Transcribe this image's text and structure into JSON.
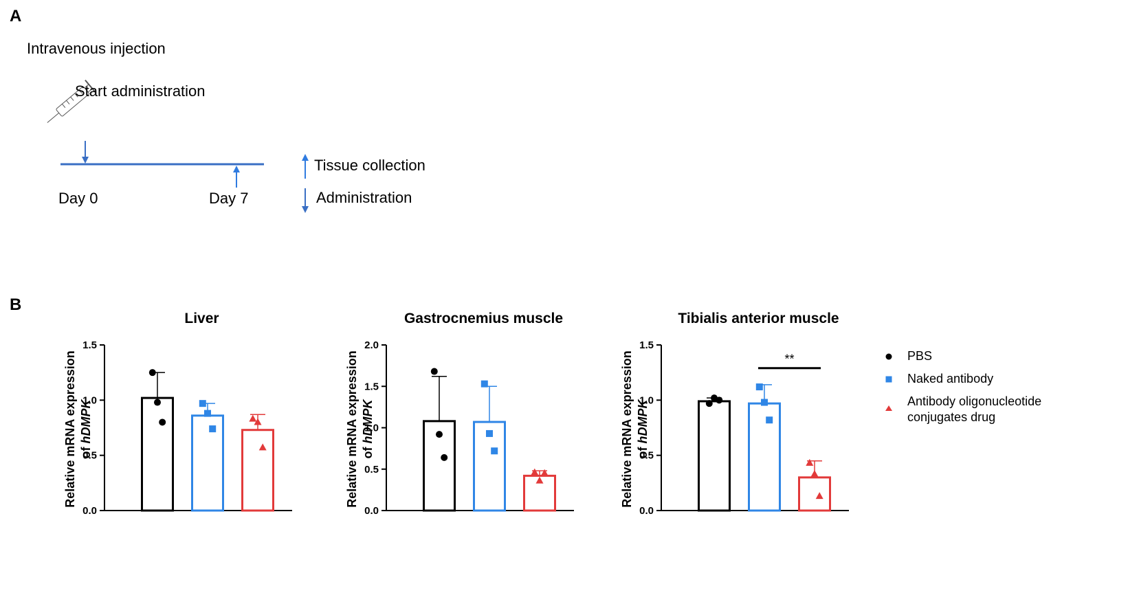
{
  "panel_a": {
    "letter": "A",
    "route": "Intravenous injection",
    "start_label": "Start administration",
    "day0": "Day 0",
    "day7": "Day 7",
    "legend": {
      "tissue": "Tissue collection",
      "admin": "Administration"
    },
    "colors": {
      "timeline": "#3a6fc4",
      "collection_arrow": "#2f7be0"
    }
  },
  "panel_b": {
    "letter": "B"
  },
  "legend": {
    "items": [
      {
        "label": "PBS",
        "color": "#000000",
        "marker": "circle"
      },
      {
        "label": "Naked antibody",
        "color": "#2f86e6",
        "marker": "square"
      },
      {
        "label_line1": "Antibody oligonucleotide",
        "label_line2": "conjugates drug",
        "color": "#e23a3a",
        "marker": "triangle"
      }
    ]
  },
  "chart_data": [
    {
      "type": "bar",
      "title": "Liver",
      "ylabel_line1": "Relative mRNA expression",
      "ylabel_line2_prefix": "of ",
      "ylabel_line2_italic": "hDMPK",
      "ylim": [
        0,
        1.5
      ],
      "yticks": [
        "0.0",
        "0.5",
        "1.0",
        "1.5"
      ],
      "ytick_values": [
        0,
        0.5,
        1.0,
        1.5
      ],
      "categories": [
        "PBS",
        "Naked antibody",
        "Antibody oligonucleotide conjugates drug"
      ],
      "values": [
        1.02,
        0.86,
        0.73
      ],
      "err": [
        0.23,
        0.11,
        0.14
      ],
      "points": [
        [
          1.25,
          0.98,
          0.8
        ],
        [
          0.97,
          0.88,
          0.74
        ],
        [
          0.83,
          0.8,
          0.57
        ]
      ],
      "significance": null
    },
    {
      "type": "bar",
      "title": "Gastrocnemius muscle",
      "ylabel_line1": "Relative mRNA expression",
      "ylabel_line2_prefix": "of ",
      "ylabel_line2_italic": "hDMPK",
      "ylim": [
        0,
        2.0
      ],
      "yticks": [
        "0.0",
        "0.5",
        "1.0",
        "1.5",
        "2.0"
      ],
      "ytick_values": [
        0,
        0.5,
        1.0,
        1.5,
        2.0
      ],
      "categories": [
        "PBS",
        "Naked antibody",
        "Antibody oligonucleotide conjugates drug"
      ],
      "values": [
        1.08,
        1.07,
        0.42
      ],
      "err": [
        0.54,
        0.43,
        0.06
      ],
      "points": [
        [
          1.68,
          0.92,
          0.64
        ],
        [
          1.53,
          0.93,
          0.72
        ],
        [
          0.46,
          0.36,
          0.45
        ]
      ],
      "significance": null
    },
    {
      "type": "bar",
      "title": "Tibialis anterior muscle",
      "ylabel_line1": "Relative mRNA expression",
      "ylabel_line2_prefix": "of ",
      "ylabel_line2_italic": "hDMPK",
      "ylim": [
        0,
        1.5
      ],
      "yticks": [
        "0.0",
        "0.5",
        "1.0",
        "1.5"
      ],
      "ytick_values": [
        0,
        0.5,
        1.0,
        1.5
      ],
      "categories": [
        "PBS",
        "Naked antibody",
        "Antibody oligonucleotide conjugates drug"
      ],
      "values": [
        0.99,
        0.97,
        0.3
      ],
      "err": [
        0.03,
        0.17,
        0.15
      ],
      "points": [
        [
          0.97,
          1.02,
          1.0
        ],
        [
          1.12,
          0.98,
          0.82
        ],
        [
          0.43,
          0.33,
          0.13
        ]
      ],
      "significance": {
        "between": [
          1,
          2
        ],
        "label": "**",
        "y": 1.29
      }
    }
  ]
}
